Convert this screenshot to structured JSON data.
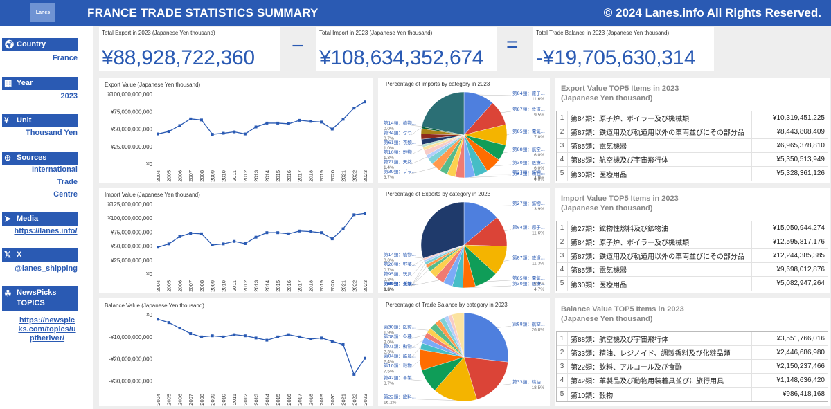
{
  "header": {
    "logo_text": "Lanes",
    "title": "FRANCE TRADE STATISTICS SUMMARY",
    "copyright": "© 2024 Lanes.info All Rights Reserved."
  },
  "sidebar": {
    "country": {
      "label": "Country",
      "value": "France",
      "icon": "globe-icon"
    },
    "year": {
      "label": "Year",
      "value": "2023",
      "icon": "calendar-icon"
    },
    "unit": {
      "label": "Unit",
      "value": "Thousand Yen",
      "icon": "yen-icon"
    },
    "sources": {
      "label": "Sources",
      "value_lines": [
        "International",
        "Trade",
        "Centre"
      ],
      "icon": "globe-grid-icon"
    },
    "media": {
      "label": "Media",
      "link": "https://lanes.info/",
      "icon": "paper-plane-icon"
    },
    "x": {
      "label": "X",
      "handle": "@lanes_shipping",
      "icon": "x-logo-icon"
    },
    "newspicks": {
      "label_lines": [
        "NewsPicks",
        "TOPICS"
      ],
      "link_lines": [
        "https://newspic",
        "ks.com/topics/u",
        "ptheriver/"
      ],
      "icon": "newspicks-icon"
    }
  },
  "kpis": {
    "export": {
      "label": "Total Export in 2023 (Japanese Yen thousand)",
      "value": "¥88,928,722,360"
    },
    "import": {
      "label": "Total Import in 2023 (Japanese Yen thousand)",
      "value": "¥108,634,352,674"
    },
    "balance": {
      "label": "Total Trade Balance in 2023 (Japanese Yen thousand)",
      "value": "-¥19,705,630,314"
    },
    "minus": "−",
    "equals": "="
  },
  "chart_data": [
    {
      "type": "line",
      "title": "Export Value (Japanese Yen thousand)",
      "x": [
        "2004",
        "2005",
        "2006",
        "2007",
        "2008",
        "2009",
        "2010",
        "2011",
        "2012",
        "2013",
        "2014",
        "2015",
        "2016",
        "2017",
        "2018",
        "2019",
        "2020",
        "2021",
        "2022",
        "2023"
      ],
      "values": [
        43000000000,
        46500000000,
        55000000000,
        64500000000,
        63000000000,
        42500000000,
        44000000000,
        46000000000,
        43000000000,
        53000000000,
        58500000000,
        58500000000,
        57500000000,
        62500000000,
        61000000000,
        60000000000,
        50000000000,
        64000000000,
        80000000000,
        88928722360
      ],
      "ylim": [
        0,
        100000000000
      ],
      "yticks": [
        "¥0",
        "¥25,000,000,000",
        "¥50,000,000,000",
        "¥75,000,000,000",
        "¥100,000,000,000"
      ],
      "color": "#2a5ab3"
    },
    {
      "type": "line",
      "title": "Import Value (Japanese Yen thousand)",
      "x": [
        "2004",
        "2005",
        "2006",
        "2007",
        "2008",
        "2009",
        "2010",
        "2011",
        "2012",
        "2013",
        "2014",
        "2015",
        "2016",
        "2017",
        "2018",
        "2019",
        "2020",
        "2021",
        "2022",
        "2023"
      ],
      "values": [
        48000000000,
        54000000000,
        67000000000,
        73000000000,
        72000000000,
        52000000000,
        54000000000,
        58500000000,
        54500000000,
        66000000000,
        74000000000,
        74000000000,
        72000000000,
        77000000000,
        76000000000,
        74000000000,
        63000000000,
        81000000000,
        106000000000,
        108634352674
      ],
      "ylim": [
        0,
        125000000000
      ],
      "yticks": [
        "¥0",
        "¥25,000,000,000",
        "¥50,000,000,000",
        "¥75,000,000,000",
        "¥100,000,000,000",
        "¥125,000,000,000"
      ],
      "color": "#2a5ab3"
    },
    {
      "type": "line",
      "title": "Balance Value (Japanese Yen thousand)",
      "x": [
        "2004",
        "2005",
        "2006",
        "2007",
        "2008",
        "2009",
        "2010",
        "2011",
        "2012",
        "2013",
        "2014",
        "2015",
        "2016",
        "2017",
        "2018",
        "2019",
        "2020",
        "2021",
        "2022",
        "2023"
      ],
      "values": [
        -2000000000,
        -3500000000,
        -6000000000,
        -8500000000,
        -10000000000,
        -9500000000,
        -10000000000,
        -9000000000,
        -9500000000,
        -10500000000,
        -11500000000,
        -10000000000,
        -9000000000,
        -10000000000,
        -11000000000,
        -10500000000,
        -12000000000,
        -13500000000,
        -27000000000,
        -19705630314
      ],
      "ylim": [
        -33000000000,
        0
      ],
      "yticks": [
        "¥0",
        "-¥10,000,000,000",
        "-¥20,000,000,000",
        "-¥30,000,000,000"
      ],
      "color": "#2a5ab3"
    },
    {
      "type": "pie",
      "title": "Percentage of imports by category in 2023",
      "slices": [
        {
          "label": "第84類：原子...",
          "pct": 11.6,
          "color": "#4e7fde"
        },
        {
          "label": "第87類：鉄道...",
          "pct": 9.5,
          "color": "#db4437"
        },
        {
          "label": "第85類：電気...",
          "pct": 7.8,
          "color": "#f4b400"
        },
        {
          "label": "第88類：航空...",
          "pct": 6.0,
          "color": "#0f9d58"
        },
        {
          "label": "第30類：医療...",
          "pct": 6.0,
          "color": "#ff6d01"
        },
        {
          "label": "第27類：鉱物...",
          "pct": 4.9,
          "color": "#46bdc6"
        },
        {
          "label": "第33類：精油...",
          "pct": 4.0,
          "color": "#7baaf7"
        },
        {
          "label": "",
          "pct": 3.5,
          "color": "#f07b72"
        },
        {
          "label": "",
          "pct": 3.2,
          "color": "#fcd04f"
        },
        {
          "label": "",
          "pct": 3.0,
          "color": "#57bb8a"
        },
        {
          "label": "第39類：プラ...",
          "pct": 3.7,
          "color": "#ff994d"
        },
        {
          "label": "",
          "pct": 2.5,
          "color": "#7ed1d7"
        },
        {
          "label": "第71類：天然...",
          "pct": 1.4,
          "color": "#b3cefb"
        },
        {
          "label": "",
          "pct": 2.0,
          "color": "#f7cbc7"
        },
        {
          "label": "第10類：穀物",
          "pct": 1.3,
          "color": "#fbe3a0"
        },
        {
          "label": "第61類：衣類...",
          "pct": 1.0,
          "color": "#b7e1cd"
        },
        {
          "label": "",
          "pct": 2.0,
          "color": "#1f3a6b"
        },
        {
          "label": "",
          "pct": 2.0,
          "color": "#8e2a1e"
        },
        {
          "label": "",
          "pct": 2.0,
          "color": "#a8841a"
        },
        {
          "label": "第34類：せつ...",
          "pct": 0.7,
          "color": "#0a6237"
        },
        {
          "label": "第14類：植物...",
          "pct": 0.0,
          "color": "#9c3f00"
        },
        {
          "label": "",
          "pct": 21.9,
          "color": "#2b6f75"
        }
      ]
    },
    {
      "type": "pie",
      "title": "Percentage of Exports by category in 2023",
      "slices": [
        {
          "label": "第27類：鉱物...",
          "pct": 13.9,
          "color": "#4e7fde"
        },
        {
          "label": "第84類：原子...",
          "pct": 11.6,
          "color": "#db4437"
        },
        {
          "label": "第87類：鉄道...",
          "pct": 11.3,
          "color": "#f4b400"
        },
        {
          "label": "第85類：電気...",
          "pct": 8.9,
          "color": "#0f9d58"
        },
        {
          "label": "第30類：医療...",
          "pct": 4.7,
          "color": "#ff6d01"
        },
        {
          "label": "",
          "pct": 4.0,
          "color": "#46bdc6"
        },
        {
          "label": "",
          "pct": 3.6,
          "color": "#7baaf7"
        },
        {
          "label": "第39類：プラ...",
          "pct": 3.5,
          "color": "#f07b72"
        },
        {
          "label": "",
          "pct": 3.0,
          "color": "#fcd04f"
        },
        {
          "label": "第61類：衣類...",
          "pct": 1.6,
          "color": "#57bb8a"
        },
        {
          "label": "第71類：天然...",
          "pct": 1.3,
          "color": "#ff994d"
        },
        {
          "label": "第40類：ゴム...",
          "pct": 1.1,
          "color": "#7ed1d7"
        },
        {
          "label": "第95類：玩具...",
          "pct": 0.8,
          "color": "#b3cefb"
        },
        {
          "label": "第20類：野菜...",
          "pct": 0.7,
          "color": "#f7cbc7"
        },
        {
          "label": "第14類：植物...",
          "pct": 0.0,
          "color": "#fbe3a0"
        },
        {
          "label": "",
          "pct": 30.0,
          "color": "#1f3a6b"
        }
      ]
    },
    {
      "type": "pie",
      "title": "Percentage of Trade Balance by category in 2023",
      "slices": [
        {
          "label": "第88類：航空...",
          "pct": 26.8,
          "color": "#4e7fde"
        },
        {
          "label": "第33類：精油...",
          "pct": 18.5,
          "color": "#db4437"
        },
        {
          "label": "第22類：飲料...",
          "pct": 16.2,
          "color": "#f4b400"
        },
        {
          "label": "第42類：革製...",
          "pct": 8.7,
          "color": "#0f9d58"
        },
        {
          "label": "第10類：穀物",
          "pct": 7.5,
          "color": "#ff6d01"
        },
        {
          "label": "第04類：酪農...",
          "pct": 2.4,
          "color": "#46bdc6"
        },
        {
          "label": "第01類：動物...",
          "pct": 2.3,
          "color": "#7baaf7"
        },
        {
          "label": "第38類：各種...",
          "pct": 2.0,
          "color": "#f07b72"
        },
        {
          "label": "第30類：医療...",
          "pct": 1.9,
          "color": "#fcd04f"
        },
        {
          "label": "",
          "pct": 2.5,
          "color": "#57bb8a"
        },
        {
          "label": "",
          "pct": 2.0,
          "color": "#ff994d"
        },
        {
          "label": "",
          "pct": 1.8,
          "color": "#7ed1d7"
        },
        {
          "label": "",
          "pct": 1.6,
          "color": "#b3cefb"
        },
        {
          "label": "",
          "pct": 1.4,
          "color": "#f7cbc7"
        },
        {
          "label": "",
          "pct": 4.4,
          "color": "#fbe3a0"
        }
      ]
    }
  ],
  "tables": {
    "export": {
      "title_lines": [
        "Export Value TOP5 Items in 2023",
        "(Japanese Yen thousand)"
      ],
      "rows": [
        {
          "rank": "1",
          "name": "第84類：原子炉、ボイラー及び機械類",
          "value": "¥10,319,451,225"
        },
        {
          "rank": "2",
          "name": "第87類：鉄道用及び軌道用以外の車両並びにその部分品",
          "value": "¥8,443,808,409"
        },
        {
          "rank": "3",
          "name": "第85類：電気機器",
          "value": "¥6,965,378,810"
        },
        {
          "rank": "4",
          "name": "第88類：航空機及び宇宙飛行体",
          "value": "¥5,350,513,949"
        },
        {
          "rank": "5",
          "name": "第30類：医療用品",
          "value": "¥5,328,361,126"
        }
      ]
    },
    "import": {
      "title_lines": [
        "Import Value TOP5 Items in 2023",
        "(Japanese Yen thousand)"
      ],
      "rows": [
        {
          "rank": "1",
          "name": "第27類：鉱物性燃料及び鉱物油",
          "value": "¥15,050,944,274"
        },
        {
          "rank": "2",
          "name": "第84類：原子炉、ボイラー及び機械類",
          "value": "¥12,595,817,176"
        },
        {
          "rank": "3",
          "name": "第87類：鉄道用及び軌道用以外の車両並びにその部分品",
          "value": "¥12,244,385,385"
        },
        {
          "rank": "4",
          "name": "第85類：電気機器",
          "value": "¥9,698,012,876"
        },
        {
          "rank": "5",
          "name": "第30類：医療用品",
          "value": "¥5,082,947,264"
        }
      ]
    },
    "balance": {
      "title_lines": [
        "Balance Value TOP5 Items in 2023",
        "(Japanese Yen thousand)"
      ],
      "rows": [
        {
          "rank": "1",
          "name": "第88類：航空機及び宇宙飛行体",
          "value": "¥3,551,766,016"
        },
        {
          "rank": "2",
          "name": "第33類：精油、レジノイド、調製香料及び化粧品類",
          "value": "¥2,446,686,980"
        },
        {
          "rank": "3",
          "name": "第22類：飲料、アルコール及び食酢",
          "value": "¥2,150,237,466"
        },
        {
          "rank": "4",
          "name": "第42類：革製品及び動物用装着具並びに旅行用具",
          "value": "¥1,148,636,420"
        },
        {
          "rank": "5",
          "name": "第10類：穀物",
          "value": "¥986,418,168"
        }
      ]
    }
  }
}
